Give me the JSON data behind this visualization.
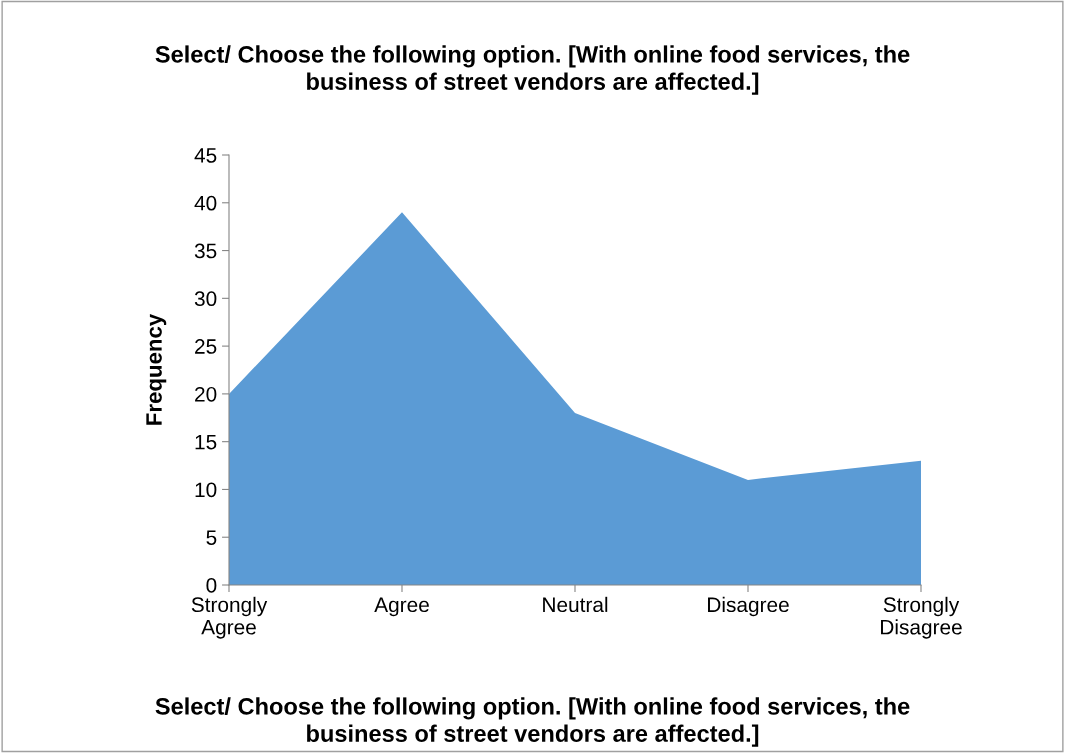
{
  "chart_data": {
    "type": "area",
    "title": "Select/ Choose the following option. [With online food services, the\nbusiness of street vendors are affected.]",
    "xlabel": "Select/ Choose the following option. [With online food services, the\nbusiness of street vendors are affected.]",
    "ylabel": "Frequency",
    "categories": [
      "Strongly\nAgree",
      "Agree",
      "Neutral",
      "Disagree",
      "Strongly\nDisagree"
    ],
    "series": [
      {
        "color": "#5b9bd5",
        "values": [
          20,
          39,
          18,
          11,
          13
        ]
      }
    ],
    "ylim": [
      0,
      45
    ],
    "yticks": [
      0,
      5,
      10,
      15,
      20,
      25,
      30,
      35,
      40,
      45
    ],
    "grid": false,
    "legend": false
  }
}
